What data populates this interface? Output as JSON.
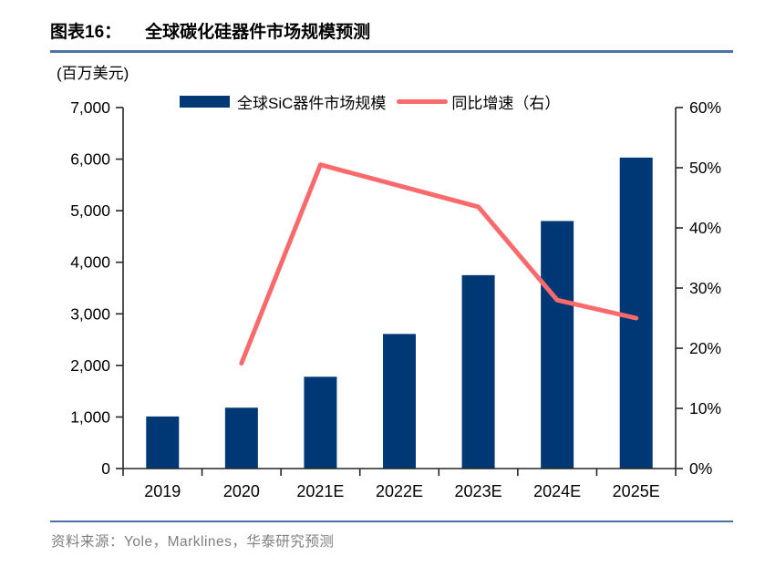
{
  "figure": {
    "label": "图表16：",
    "title": "全球碳化硅器件市场规模预测",
    "unit": "(百万美元)",
    "source": "资料来源：Yole，Marklines，华泰研究预测"
  },
  "legend": {
    "bar_label": "全球SiC器件市场规模",
    "line_label": "同比增速（右）"
  },
  "colors": {
    "bar": "#003876",
    "line": "#FA6A6D",
    "rule": "#4A72A4",
    "source_text": "#7F7F7F",
    "axis": "#262626",
    "tick_text": "#000000"
  },
  "chart_data": {
    "type": "bar",
    "title": "全球碳化硅器件市场规模预测",
    "categories": [
      "2019",
      "2020",
      "2021E",
      "2022E",
      "2023E",
      "2024E",
      "2025E"
    ],
    "series": [
      {
        "name": "全球SiC器件市场规模",
        "type": "bar",
        "axis": "left",
        "values": [
          1010,
          1180,
          1780,
          2610,
          3750,
          4800,
          6030
        ]
      },
      {
        "name": "同比增速（右）",
        "type": "line",
        "axis": "right",
        "values": [
          null,
          17.5,
          50.5,
          47,
          43.5,
          28,
          25
        ]
      }
    ],
    "left_axis": {
      "label": "(百万美元)",
      "min": 0,
      "max": 7000,
      "step": 1000,
      "tick_labels": [
        "0",
        "1,000",
        "2,000",
        "3,000",
        "4,000",
        "5,000",
        "6,000",
        "7,000"
      ]
    },
    "right_axis": {
      "min": 0,
      "max": 60,
      "step": 10,
      "tick_labels": [
        "0%",
        "10%",
        "20%",
        "30%",
        "40%",
        "50%",
        "60%"
      ]
    },
    "grid": false,
    "legend_position": "top"
  }
}
